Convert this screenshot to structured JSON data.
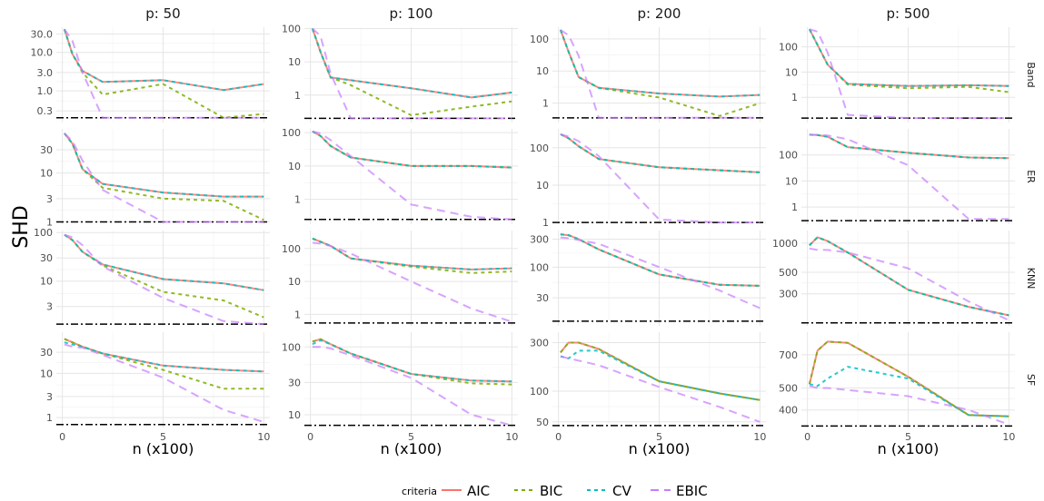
{
  "chart_data": {
    "type": "line",
    "facet_cols": [
      "p: 50",
      "p: 100",
      "p: 200",
      "p: 500"
    ],
    "facet_rows": [
      "Band",
      "ER",
      "KNN",
      "SF"
    ],
    "xlabel": "n (x100)",
    "ylabel": "SHD",
    "x": [
      0.1,
      0.5,
      1,
      2,
      5,
      8,
      10
    ],
    "xticks": [
      0,
      5,
      10
    ],
    "xlim": [
      -0.3,
      10.3
    ],
    "scale_y": "log",
    "legend": {
      "title": "criteria",
      "position": "bottom",
      "entries": [
        "AIC",
        "BIC",
        "CV",
        "EBIC"
      ]
    },
    "colors": {
      "AIC": "#F8766D",
      "BIC": "#7CAE00",
      "CV": "#00BFC4",
      "EBIC": "#C77CFF"
    },
    "styles": {
      "AIC": "solid",
      "BIC": "dashed",
      "CV": "dashed",
      "EBIC": "longdash"
    },
    "reference_line": "dotdash",
    "panels": [
      {
        "col": 0,
        "row": 0,
        "ylim": [
          0.15,
          45
        ],
        "yticks": [
          "0.3",
          "1.0",
          "3.0",
          "10.0",
          "30.0"
        ],
        "ref": 0.2,
        "series": {
          "AIC": [
            40,
            9,
            3.3,
            1.7,
            1.9,
            1.05,
            1.5
          ],
          "BIC": [
            40,
            9,
            3.0,
            0.8,
            1.5,
            0.2,
            0.25
          ],
          "CV": [
            40,
            9,
            3.3,
            1.7,
            1.9,
            1.05,
            1.5
          ],
          "EBIC": [
            40,
            20,
            3.0,
            0.2,
            0.2,
            0.2,
            0.2
          ]
        }
      },
      {
        "col": 1,
        "row": 0,
        "ylim": [
          0.15,
          110
        ],
        "yticks": [
          "1",
          "10",
          "100"
        ],
        "ref": 0.2,
        "series": {
          "AIC": [
            100,
            20,
            3.4,
            2.8,
            1.6,
            0.85,
            1.2
          ],
          "BIC": [
            100,
            20,
            3.4,
            2.0,
            0.25,
            0.45,
            0.65
          ],
          "CV": [
            100,
            20,
            3.4,
            2.8,
            1.6,
            0.85,
            1.2
          ],
          "EBIC": [
            100,
            60,
            4.5,
            0.2,
            0.2,
            0.2,
            0.2
          ]
        }
      },
      {
        "col": 2,
        "row": 0,
        "ylim": [
          0.25,
          230
        ],
        "yticks": [
          "1",
          "10",
          "100"
        ],
        "ref": 0.35,
        "series": {
          "AIC": [
            190,
            40,
            6.5,
            3.0,
            2.0,
            1.6,
            1.8
          ],
          "BIC": [
            190,
            40,
            6.5,
            3.0,
            1.5,
            0.4,
            1.0
          ],
          "CV": [
            190,
            40,
            6.5,
            3.0,
            2.0,
            1.6,
            1.8
          ],
          "EBIC": [
            190,
            130,
            30,
            0.35,
            0.35,
            0.35,
            0.35
          ]
        }
      },
      {
        "col": 3,
        "row": 0,
        "ylim": [
          0.1,
          600
        ],
        "yticks": [
          "1",
          "10",
          "100"
        ],
        "ref": 0.15,
        "series": {
          "AIC": [
            500,
            120,
            20,
            3.4,
            2.8,
            3.0,
            2.8
          ],
          "BIC": [
            500,
            120,
            20,
            3.2,
            2.3,
            2.6,
            1.6
          ],
          "CV": [
            500,
            120,
            20,
            3.4,
            2.8,
            3.0,
            2.8
          ],
          "EBIC": [
            500,
            400,
            60,
            0.2,
            0.15,
            0.15,
            0.15
          ]
        }
      },
      {
        "col": 0,
        "row": 1,
        "ylim": [
          0.9,
          80
        ],
        "yticks": [
          "1",
          "3",
          "10",
          "30"
        ],
        "ref": 1,
        "series": {
          "AIC": [
            65,
            40,
            12,
            6,
            4,
            3.3,
            3.3
          ],
          "BIC": [
            65,
            40,
            12,
            5,
            3,
            2.7,
            1.1
          ],
          "CV": [
            65,
            40,
            12,
            6,
            4,
            3.3,
            3.3
          ],
          "EBIC": [
            65,
            45,
            18,
            4.5,
            1,
            1,
            1
          ]
        }
      },
      {
        "col": 1,
        "row": 1,
        "ylim": [
          0.18,
          130
        ],
        "yticks": [
          "1",
          "10",
          "100"
        ],
        "ref": 0.25,
        "series": {
          "AIC": [
            110,
            80,
            40,
            18,
            10,
            10,
            9
          ],
          "BIC": [
            110,
            80,
            40,
            18,
            10,
            10,
            9
          ],
          "CV": [
            110,
            80,
            40,
            18,
            10,
            10,
            9
          ],
          "EBIC": [
            110,
            95,
            60,
            20,
            0.7,
            0.3,
            0.25
          ]
        }
      },
      {
        "col": 2,
        "row": 1,
        "ylim": [
          0.9,
          320
        ],
        "yticks": [
          "1",
          "10",
          "100"
        ],
        "ref": 1,
        "series": {
          "AIC": [
            230,
            180,
            110,
            50,
            30,
            25,
            22
          ],
          "BIC": [
            230,
            180,
            110,
            50,
            30,
            25,
            22
          ],
          "CV": [
            230,
            180,
            110,
            50,
            30,
            25,
            22
          ],
          "EBIC": [
            230,
            200,
            150,
            60,
            1.2,
            1.0,
            1.0
          ]
        }
      },
      {
        "col": 3,
        "row": 1,
        "ylim": [
          0.22,
          1000
        ],
        "yticks": [
          "1",
          "10",
          "100"
        ],
        "ref": 0.3,
        "series": {
          "AIC": [
            600,
            580,
            500,
            200,
            120,
            80,
            75
          ],
          "BIC": [
            600,
            580,
            500,
            200,
            120,
            80,
            75
          ],
          "CV": [
            600,
            580,
            500,
            200,
            120,
            80,
            75
          ],
          "EBIC": [
            600,
            590,
            560,
            400,
            40,
            0.35,
            0.35
          ]
        }
      },
      {
        "col": 0,
        "row": 2,
        "ylim": [
          1.2,
          110
        ],
        "yticks": [
          "3",
          "10",
          "30",
          "100"
        ],
        "ref": 1.3,
        "series": {
          "AIC": [
            90,
            70,
            40,
            22,
            11,
            9,
            6.5
          ],
          "BIC": [
            90,
            70,
            40,
            21,
            6,
            4,
            1.8
          ],
          "CV": [
            90,
            70,
            40,
            22,
            11,
            9,
            6.5
          ],
          "EBIC": [
            90,
            80,
            55,
            20,
            4.5,
            1.5,
            1.3
          ]
        }
      },
      {
        "col": 1,
        "row": 2,
        "ylim": [
          0.45,
          350
        ],
        "yticks": [
          "1",
          "10",
          "100"
        ],
        "ref": 0.55,
        "series": {
          "AIC": [
            200,
            160,
            120,
            50,
            30,
            23,
            25
          ],
          "BIC": [
            200,
            160,
            120,
            50,
            28,
            18,
            20
          ],
          "CV": [
            200,
            160,
            120,
            50,
            30,
            23,
            25
          ],
          "EBIC": [
            150,
            140,
            120,
            70,
            10,
            1.5,
            0.6
          ]
        }
      },
      {
        "col": 2,
        "row": 2,
        "ylim": [
          10,
          420
        ],
        "yticks": [
          "30",
          "100",
          "300"
        ],
        "ref": 12,
        "series": {
          "AIC": [
            360,
            350,
            300,
            200,
            75,
            50,
            48
          ],
          "BIC": [
            360,
            350,
            300,
            200,
            75,
            50,
            48
          ],
          "CV": [
            360,
            350,
            300,
            200,
            75,
            50,
            48
          ],
          "EBIC": [
            320,
            310,
            290,
            250,
            100,
            40,
            20
          ]
        }
      },
      {
        "col": 3,
        "row": 2,
        "ylim": [
          140,
          1350
        ],
        "yticks": [
          "300",
          "500",
          "1000"
        ],
        "ref": 150,
        "series": {
          "AIC": [
            950,
            1150,
            1050,
            800,
            330,
            220,
            180
          ],
          "BIC": [
            950,
            1150,
            1050,
            800,
            330,
            220,
            180
          ],
          "CV": [
            950,
            1150,
            1050,
            800,
            330,
            220,
            180
          ],
          "EBIC": [
            880,
            850,
            850,
            800,
            550,
            250,
            160
          ]
        }
      },
      {
        "col": 0,
        "row": 3,
        "ylim": [
          0.6,
          85
        ],
        "yticks": [
          "1",
          "3",
          "10",
          "30"
        ],
        "ref": 0.7,
        "series": {
          "AIC": [
            60,
            50,
            40,
            28,
            15,
            12,
            11
          ],
          "BIC": [
            60,
            50,
            40,
            28,
            12,
            4.5,
            4.5
          ],
          "CV": [
            50,
            45,
            40,
            28,
            15,
            12,
            11
          ],
          "EBIC": [
            45,
            40,
            38,
            26,
            8,
            1.5,
            0.8
          ]
        }
      },
      {
        "col": 1,
        "row": 3,
        "ylim": [
          6.5,
          165
        ],
        "yticks": [
          "10",
          "30",
          "100"
        ],
        "ref": 7,
        "series": {
          "AIC": [
            120,
            130,
            110,
            80,
            40,
            32,
            31
          ],
          "BIC": [
            120,
            130,
            110,
            80,
            40,
            29,
            28
          ],
          "CV": [
            110,
            125,
            110,
            80,
            40,
            32,
            31
          ],
          "EBIC": [
            100,
            100,
            95,
            75,
            35,
            10,
            7
          ]
        }
      },
      {
        "col": 2,
        "row": 3,
        "ylim": [
          44,
          380
        ],
        "yticks": [
          "50",
          "100",
          "300"
        ],
        "ref": 46,
        "series": {
          "AIC": [
            240,
            300,
            300,
            260,
            125,
            95,
            82
          ],
          "BIC": [
            240,
            300,
            300,
            260,
            125,
            95,
            82
          ],
          "CV": [
            220,
            210,
            250,
            250,
            125,
            95,
            82
          ],
          "EBIC": [
            220,
            210,
            200,
            180,
            110,
            70,
            50
          ]
        }
      },
      {
        "col": 3,
        "row": 3,
        "ylim": [
          335,
          880
        ],
        "yticks": [
          "400",
          "500",
          "700"
        ],
        "ref": 340,
        "series": {
          "AIC": [
            520,
            730,
            800,
            790,
            560,
            380,
            375
          ],
          "BIC": [
            520,
            730,
            800,
            790,
            560,
            380,
            375
          ],
          "CV": [
            520,
            510,
            550,
            620,
            550,
            380,
            375
          ],
          "EBIC": [
            510,
            500,
            500,
            490,
            460,
            400,
            345
          ]
        }
      }
    ]
  }
}
